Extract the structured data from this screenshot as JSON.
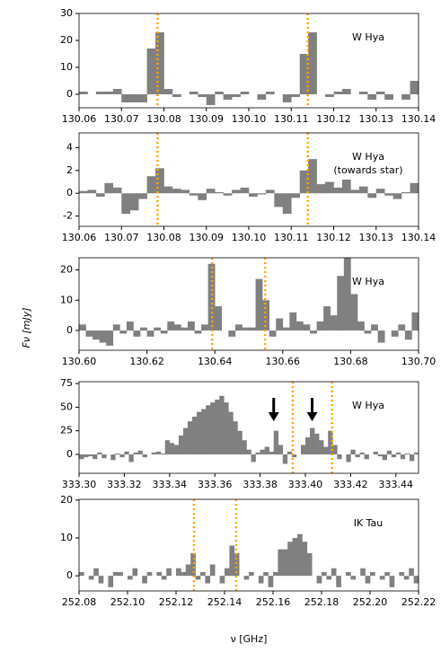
{
  "figure": {
    "ylabel": "Fν [mJy]",
    "xlabel": "ν [GHz]"
  },
  "chart_data": [
    {
      "type": "histogram",
      "color": "#808080",
      "line_color": "#ffa500",
      "annotation": [
        "W Hya"
      ],
      "xlim": [
        130.06,
        130.14
      ],
      "ylim": [
        -5,
        30
      ],
      "yticks": [
        0,
        10,
        20,
        30
      ],
      "xticks": [
        130.06,
        130.07,
        130.08,
        130.09,
        {
          "value": 130.1,
          "label": "130.10"
        },
        130.11,
        130.12,
        130.13,
        130.14
      ],
      "vlines": [
        130.0785,
        130.1139
      ],
      "bins": [
        130.06,
        130.062,
        130.064,
        130.066,
        130.068,
        130.07,
        130.072,
        130.074,
        130.076,
        130.078,
        130.08,
        130.082,
        130.084,
        130.086,
        130.088,
        130.09,
        130.092,
        130.094,
        130.096,
        130.098,
        130.1,
        130.102,
        130.104,
        130.106,
        130.108,
        130.11,
        130.112,
        130.114,
        130.116,
        130.118,
        130.12,
        130.122,
        130.124,
        130.126,
        130.128,
        130.13,
        130.132,
        130.134,
        130.136,
        130.138,
        130.14
      ],
      "values": [
        1,
        0,
        1,
        1,
        2,
        -3,
        -3,
        -3,
        17,
        23,
        2,
        -1,
        0,
        1,
        -1,
        -4,
        1,
        -2,
        -1,
        1,
        0,
        -2,
        1,
        0,
        -3,
        -1,
        15,
        23,
        0,
        -1,
        1,
        2,
        0,
        1,
        -2,
        1,
        -2,
        0,
        -2,
        5
      ]
    },
    {
      "type": "histogram",
      "color": "#808080",
      "line_color": "#ffa500",
      "annotation": [
        "W Hya",
        "(towards star)"
      ],
      "xlim": [
        130.06,
        130.14
      ],
      "ylim": [
        -2.9,
        5.3
      ],
      "yticks": [
        -2,
        0,
        2,
        4
      ],
      "xticks": [
        130.06,
        130.07,
        130.08,
        130.09,
        {
          "value": 130.1,
          "label": "130.10"
        },
        130.11,
        130.12,
        130.13,
        130.14
      ],
      "vlines": [
        130.0785,
        130.1139
      ],
      "bins": [
        130.06,
        130.062,
        130.064,
        130.066,
        130.068,
        130.07,
        130.072,
        130.074,
        130.076,
        130.078,
        130.08,
        130.082,
        130.084,
        130.086,
        130.088,
        130.09,
        130.092,
        130.094,
        130.096,
        130.098,
        130.1,
        130.102,
        130.104,
        130.106,
        130.108,
        130.11,
        130.112,
        130.114,
        130.116,
        130.118,
        130.12,
        130.122,
        130.124,
        130.126,
        130.128,
        130.13,
        130.132,
        130.134,
        130.136,
        130.138,
        130.14
      ],
      "values": [
        0.2,
        0.3,
        -0.3,
        0.9,
        0.5,
        -1.8,
        -1.5,
        -0.5,
        1.5,
        2.2,
        0.6,
        0.4,
        0.3,
        -0.2,
        -0.6,
        0.4,
        0.1,
        -0.2,
        0.3,
        0.5,
        -0.3,
        -0.1,
        0.3,
        -1.2,
        -1.8,
        -0.4,
        2.0,
        3.0,
        0.8,
        1.0,
        0.5,
        1.2,
        0.3,
        0.6,
        -0.4,
        0.4,
        -0.2,
        -0.5,
        0.1,
        0.9
      ]
    },
    {
      "type": "histogram",
      "color": "#808080",
      "line_color": "#ffa500",
      "annotation": [
        "W Hya"
      ],
      "xlim": [
        130.6,
        130.7
      ],
      "ylim": [
        -6.5,
        24
      ],
      "yticks": [
        0,
        10,
        20
      ],
      "xticks": [
        {
          "value": 130.6,
          "label": "130.60"
        },
        130.62,
        130.64,
        130.66,
        130.68,
        {
          "value": 130.7,
          "label": "130.70"
        }
      ],
      "vlines": [
        130.6392,
        130.6548
      ],
      "bins": [
        130.6,
        130.602,
        130.604,
        130.606,
        130.608,
        130.61,
        130.612,
        130.614,
        130.616,
        130.618,
        130.62,
        130.622,
        130.624,
        130.626,
        130.628,
        130.63,
        130.632,
        130.634,
        130.636,
        130.638,
        130.64,
        130.642,
        130.644,
        130.646,
        130.648,
        130.65,
        130.652,
        130.654,
        130.656,
        130.658,
        130.66,
        130.662,
        130.664,
        130.666,
        130.668,
        130.67,
        130.672,
        130.674,
        130.676,
        130.678,
        130.68,
        130.682,
        130.684,
        130.686,
        130.688,
        130.69,
        130.692,
        130.694,
        130.696,
        130.698,
        130.7
      ],
      "values": [
        2,
        -2,
        -3,
        -4,
        -5,
        2,
        -1,
        3,
        -2,
        1,
        -2,
        1,
        -1,
        3,
        2,
        1,
        3,
        -1,
        2,
        22,
        8,
        0,
        -2,
        2,
        1,
        1,
        17,
        10,
        -2,
        4,
        1,
        6,
        3,
        2,
        -1,
        3,
        8,
        5,
        18,
        25,
        12,
        3,
        -1,
        2,
        -4,
        0,
        -2,
        2,
        -3,
        6
      ]
    },
    {
      "type": "histogram",
      "color": "#808080",
      "line_color": "#ffa500",
      "annotation": [
        "W Hya"
      ],
      "xlim": [
        333.3,
        333.45
      ],
      "ylim": [
        -20,
        77
      ],
      "yticks": [
        0,
        25,
        50,
        75
      ],
      "xticks": [
        {
          "value": 333.3,
          "label": "333.30"
        },
        333.32,
        333.34,
        333.36,
        333.38,
        {
          "value": 333.4,
          "label": "333.40"
        },
        333.42,
        333.44
      ],
      "vlines": [
        333.3944,
        333.4118
      ],
      "arrows": [
        333.386,
        333.403
      ],
      "bins": [
        333.3,
        333.302,
        333.304,
        333.306,
        333.308,
        333.31,
        333.312,
        333.314,
        333.316,
        333.318,
        333.32,
        333.322,
        333.324,
        333.326,
        333.328,
        333.33,
        333.332,
        333.334,
        333.336,
        333.338,
        333.34,
        333.342,
        333.344,
        333.346,
        333.348,
        333.35,
        333.352,
        333.354,
        333.356,
        333.358,
        333.36,
        333.362,
        333.364,
        333.366,
        333.368,
        333.37,
        333.372,
        333.374,
        333.376,
        333.378,
        333.38,
        333.382,
        333.384,
        333.386,
        333.388,
        333.39,
        333.392,
        333.394,
        333.396,
        333.398,
        333.4,
        333.402,
        333.404,
        333.406,
        333.408,
        333.41,
        333.412,
        333.414,
        333.416,
        333.418,
        333.42,
        333.422,
        333.424,
        333.426,
        333.428,
        333.43,
        333.432,
        333.434,
        333.436,
        333.438,
        333.44,
        333.442,
        333.444,
        333.446,
        333.448,
        333.45
      ],
      "values": [
        -5,
        -3,
        -2,
        -5,
        2,
        -4,
        0,
        -6,
        1,
        -3,
        3,
        -8,
        2,
        4,
        -3,
        0,
        2,
        3,
        1,
        15,
        12,
        10,
        20,
        28,
        35,
        40,
        45,
        48,
        52,
        55,
        58,
        62,
        55,
        45,
        35,
        25,
        15,
        5,
        -8,
        2,
        5,
        8,
        3,
        25,
        10,
        -10,
        3,
        -3,
        0,
        10,
        18,
        28,
        22,
        15,
        8,
        25,
        10,
        -5,
        0,
        -8,
        5,
        -3,
        2,
        -5,
        0,
        3,
        -2,
        -6,
        4,
        -3,
        2,
        -5,
        1,
        -7,
        2
      ]
    },
    {
      "type": "histogram",
      "color": "#808080",
      "line_color": "#ffa500",
      "annotation": [
        "IK Tau"
      ],
      "xlim": [
        252.08,
        252.22
      ],
      "ylim": [
        -4,
        20.2
      ],
      "yticks": [
        0,
        10,
        20
      ],
      "xticks": [
        252.08,
        {
          "value": 252.1,
          "label": "252.10"
        },
        252.12,
        252.14,
        252.16,
        252.18,
        {
          "value": 252.2,
          "label": "252.20"
        },
        252.22
      ],
      "vlines": [
        252.1274,
        252.1448
      ],
      "bins": [
        252.08,
        252.082,
        252.084,
        252.086,
        252.088,
        252.09,
        252.092,
        252.094,
        252.096,
        252.098,
        252.1,
        252.102,
        252.104,
        252.106,
        252.108,
        252.11,
        252.112,
        252.114,
        252.116,
        252.118,
        252.12,
        252.122,
        252.124,
        252.126,
        252.128,
        252.13,
        252.132,
        252.134,
        252.136,
        252.138,
        252.14,
        252.142,
        252.144,
        252.146,
        252.148,
        252.15,
        252.152,
        252.154,
        252.156,
        252.158,
        252.16,
        252.162,
        252.164,
        252.166,
        252.168,
        252.17,
        252.172,
        252.174,
        252.176,
        252.178,
        252.18,
        252.182,
        252.184,
        252.186,
        252.188,
        252.19,
        252.192,
        252.194,
        252.196,
        252.198,
        252.2,
        252.202,
        252.204,
        252.206,
        252.208,
        252.21,
        252.212,
        252.214,
        252.216,
        252.218,
        252.22
      ],
      "values": [
        1,
        0,
        -1,
        2,
        -2,
        0,
        -3,
        1,
        1,
        0,
        -1,
        2,
        0,
        -2,
        1,
        0,
        1,
        -1,
        2,
        0,
        2,
        1,
        3,
        6,
        -1,
        1,
        -2,
        3,
        0,
        -2,
        2,
        8,
        6,
        0,
        -1,
        1,
        0,
        -2,
        1,
        -3,
        1,
        7,
        7,
        9,
        10,
        11,
        9,
        6,
        0,
        -2,
        1,
        -1,
        2,
        -3,
        0,
        1,
        -1,
        0,
        2,
        -2,
        1,
        0,
        -1,
        1,
        -3,
        0,
        1,
        -1,
        2,
        -2
      ]
    }
  ]
}
